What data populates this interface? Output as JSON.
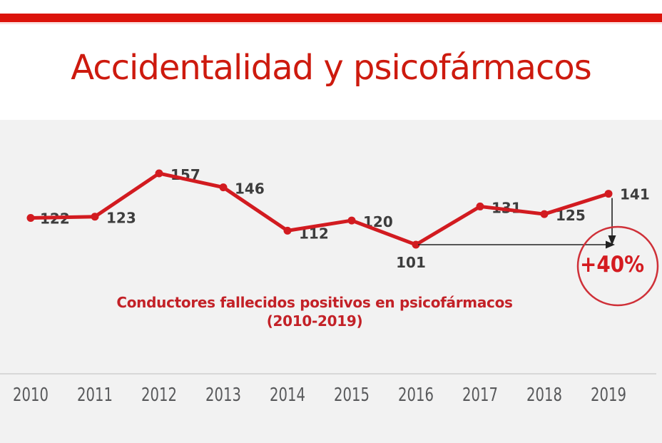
{
  "header": {
    "title": "Accidentalidad y psicofármacos"
  },
  "chart_data": {
    "type": "line",
    "title": "Conductores fallecidos positivos en psicofármacos",
    "subtitle": "(2010-2019)",
    "categories": [
      "2010",
      "2011",
      "2012",
      "2013",
      "2014",
      "2015",
      "2016",
      "2017",
      "2018",
      "2019"
    ],
    "series": [
      {
        "name": "Conductores fallecidos positivos en psicofármacos",
        "values": [
          122,
          123,
          157,
          146,
          112,
          120,
          101,
          131,
          125,
          141
        ]
      }
    ],
    "xlabel": "",
    "ylabel": "",
    "ylim": [
      95,
      165
    ],
    "grid": false,
    "legend": false,
    "data_labels": true,
    "annotation": {
      "label": "+40%",
      "from_category": "2016",
      "to_category": "2019"
    }
  },
  "colors": {
    "accent_bar": "#dc130a",
    "title": "#cd1a0e",
    "panel_bg": "#f2f2f2",
    "caption": "#c32127",
    "line": "#d21b20",
    "data_label": "#3d3d3d",
    "tick_label": "#58595b",
    "axis_line": "#d8d8d8",
    "arrow": "#222222",
    "annotation": "#d41b20",
    "annotation_ring": "#cf3038"
  }
}
